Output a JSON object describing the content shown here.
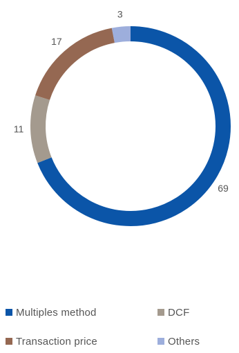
{
  "chart_data": {
    "type": "pie",
    "variant": "donut",
    "title": "",
    "categories": [
      "Multiples method",
      "DCF",
      "Transaction price",
      "Others"
    ],
    "values": [
      69,
      11,
      17,
      3
    ],
    "data_labels": [
      "69",
      "11",
      "17",
      "3"
    ],
    "colors": [
      "#0b55a8",
      "#a49a8e",
      "#956852",
      "#9daedc"
    ],
    "start_angle_deg": 0,
    "direction": "clockwise",
    "legend_position": "bottom"
  }
}
